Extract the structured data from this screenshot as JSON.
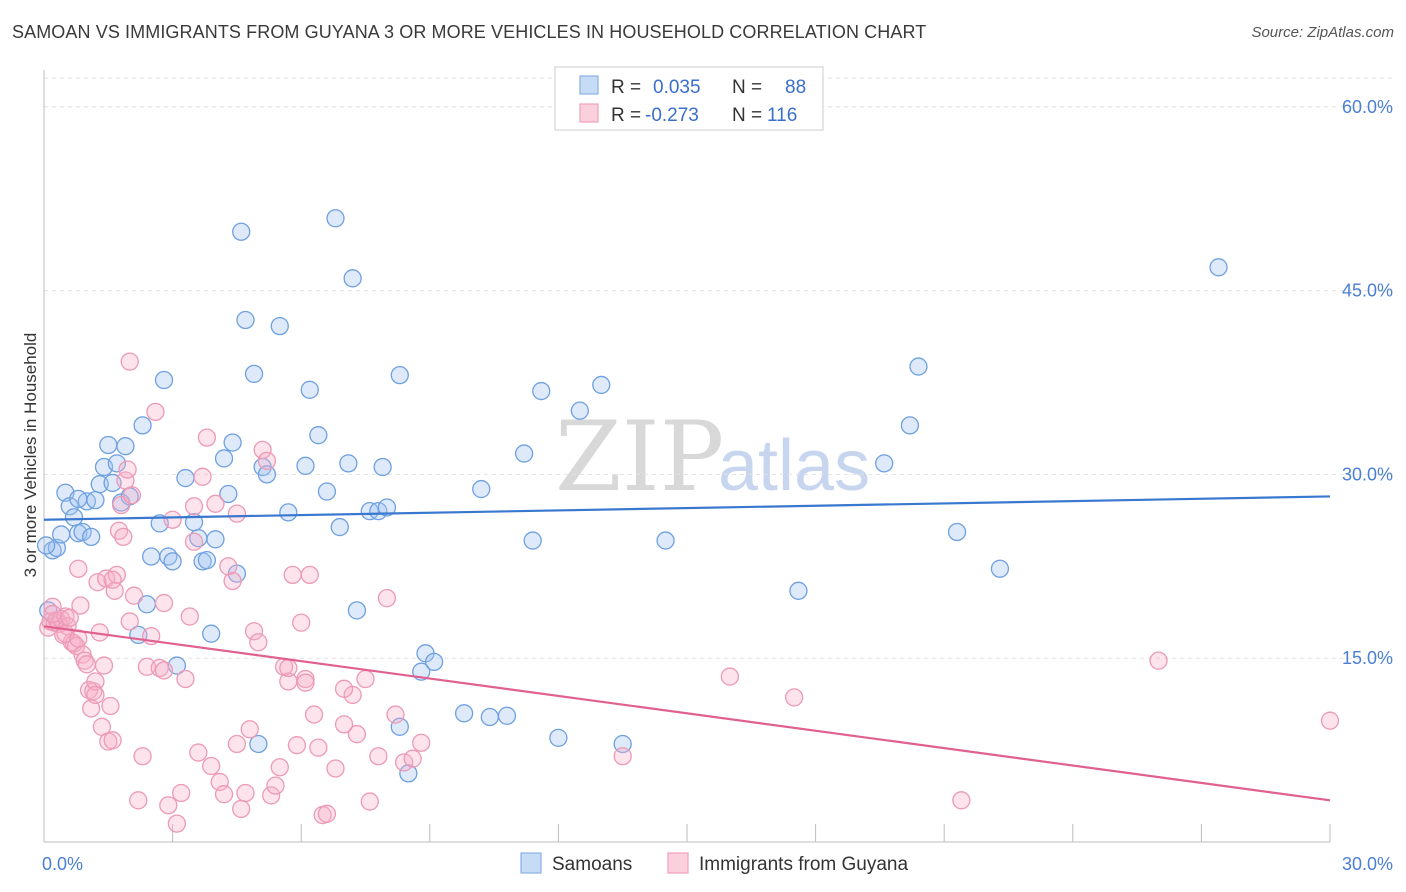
{
  "title": "SAMOAN VS IMMIGRANTS FROM GUYANA 3 OR MORE VEHICLES IN HOUSEHOLD CORRELATION CHART",
  "source": "Source: ZipAtlas.com",
  "watermark": {
    "zip": "ZIP",
    "atlas": "atlas"
  },
  "legend": {
    "r_label": "R =",
    "n_label": "N =",
    "rows": [
      {
        "r": "0.035",
        "n": "88",
        "color": "#a8c8f0"
      },
      {
        "r": "-0.273",
        "n": "116",
        "color": "#f5b8cc"
      }
    ]
  },
  "bottom_legend": [
    "Samoans",
    "Immigrants from Guyana"
  ],
  "chart_data": {
    "type": "scatter",
    "title": "SAMOAN VS IMMIGRANTS FROM GUYANA 3 OR MORE VEHICLES IN HOUSEHOLD CORRELATION CHART",
    "xlabel": "",
    "ylabel": "3 or more Vehicles in Household",
    "xlim": [
      0,
      30
    ],
    "ylim": [
      0,
      63
    ],
    "x_tick_labels": [
      "0.0%",
      "30.0%"
    ],
    "y_ticks": [
      15,
      30,
      45,
      60
    ],
    "y_tick_labels": [
      "15.0%",
      "30.0%",
      "45.0%",
      "60.0%"
    ],
    "grid": true,
    "series": [
      {
        "name": "Samoans",
        "color": "#6fa0e0",
        "trend": {
          "x": [
            0,
            30
          ],
          "y": [
            26.3,
            28.2
          ],
          "color": "#3a78d0"
        },
        "points": [
          [
            0.1,
            18.9
          ],
          [
            0.2,
            23.8
          ],
          [
            0.3,
            24.0
          ],
          [
            0.4,
            25.1
          ],
          [
            0.5,
            28.5
          ],
          [
            0.6,
            27.4
          ],
          [
            0.7,
            26.5
          ],
          [
            0.8,
            25.2
          ],
          [
            0.9,
            25.3
          ],
          [
            1.0,
            27.8
          ],
          [
            1.1,
            24.9
          ],
          [
            1.2,
            27.9
          ],
          [
            1.3,
            29.2
          ],
          [
            1.4,
            30.6
          ],
          [
            1.5,
            32.4
          ],
          [
            1.6,
            29.3
          ],
          [
            1.7,
            30.9
          ],
          [
            1.8,
            27.7
          ],
          [
            1.9,
            32.3
          ],
          [
            2.0,
            28.2
          ],
          [
            2.2,
            16.9
          ],
          [
            2.3,
            34.0
          ],
          [
            2.4,
            19.4
          ],
          [
            2.5,
            23.3
          ],
          [
            2.7,
            26.0
          ],
          [
            2.8,
            37.7
          ],
          [
            2.9,
            23.3
          ],
          [
            3.0,
            22.9
          ],
          [
            3.1,
            14.4
          ],
          [
            3.3,
            29.7
          ],
          [
            3.5,
            26.1
          ],
          [
            3.6,
            24.8
          ],
          [
            3.7,
            22.9
          ],
          [
            3.8,
            23.0
          ],
          [
            3.9,
            17.0
          ],
          [
            4.0,
            24.7
          ],
          [
            4.2,
            31.3
          ],
          [
            4.3,
            28.4
          ],
          [
            4.4,
            32.6
          ],
          [
            4.5,
            21.9
          ],
          [
            4.6,
            49.8
          ],
          [
            4.7,
            42.6
          ],
          [
            4.9,
            38.2
          ],
          [
            5.0,
            8.0
          ],
          [
            5.1,
            30.6
          ],
          [
            5.2,
            30.0
          ],
          [
            5.5,
            42.1
          ],
          [
            5.7,
            26.9
          ],
          [
            6.1,
            30.7
          ],
          [
            6.2,
            36.9
          ],
          [
            6.4,
            33.2
          ],
          [
            6.6,
            28.6
          ],
          [
            6.8,
            50.9
          ],
          [
            6.9,
            25.7
          ],
          [
            7.1,
            30.9
          ],
          [
            7.2,
            46.0
          ],
          [
            7.3,
            18.9
          ],
          [
            7.6,
            27.0
          ],
          [
            7.8,
            27.0
          ],
          [
            7.9,
            30.6
          ],
          [
            8.0,
            27.3
          ],
          [
            8.3,
            38.1
          ],
          [
            8.3,
            9.4
          ],
          [
            8.5,
            5.6
          ],
          [
            8.8,
            13.9
          ],
          [
            8.9,
            15.4
          ],
          [
            9.1,
            14.7
          ],
          [
            9.8,
            10.5
          ],
          [
            10.2,
            28.8
          ],
          [
            10.4,
            10.2
          ],
          [
            10.8,
            10.3
          ],
          [
            11.2,
            31.7
          ],
          [
            11.4,
            24.6
          ],
          [
            11.6,
            36.8
          ],
          [
            12.0,
            8.5
          ],
          [
            12.5,
            35.2
          ],
          [
            13.0,
            37.3
          ],
          [
            13.5,
            8.0
          ],
          [
            14.5,
            24.6
          ],
          [
            17.6,
            20.5
          ],
          [
            19.6,
            30.9
          ],
          [
            20.2,
            34.0
          ],
          [
            20.4,
            38.8
          ],
          [
            21.3,
            25.3
          ],
          [
            22.3,
            22.3
          ],
          [
            27.4,
            46.9
          ],
          [
            0.05,
            24.2
          ],
          [
            0.8,
            28.0
          ]
        ]
      },
      {
        "name": "Immigrants from Guyana",
        "color": "#f0a6bf",
        "trend": {
          "x": [
            0,
            30
          ],
          "y": [
            17.6,
            3.4
          ],
          "color": "#e0608f"
        },
        "points": [
          [
            0.1,
            17.5
          ],
          [
            0.15,
            18.0
          ],
          [
            0.2,
            19.2
          ],
          [
            0.25,
            17.9
          ],
          [
            0.3,
            18.1
          ],
          [
            0.35,
            17.8
          ],
          [
            0.4,
            18.2
          ],
          [
            0.45,
            16.9
          ],
          [
            0.5,
            18.4
          ],
          [
            0.55,
            17.6
          ],
          [
            0.6,
            18.3
          ],
          [
            0.65,
            16.3
          ],
          [
            0.7,
            16.2
          ],
          [
            0.75,
            16.0
          ],
          [
            0.8,
            22.3
          ],
          [
            0.85,
            19.3
          ],
          [
            0.9,
            15.3
          ],
          [
            0.95,
            14.8
          ],
          [
            1.0,
            14.5
          ],
          [
            1.05,
            12.4
          ],
          [
            1.1,
            10.9
          ],
          [
            1.15,
            12.3
          ],
          [
            1.2,
            13.1
          ],
          [
            1.25,
            21.2
          ],
          [
            1.3,
            17.1
          ],
          [
            1.35,
            9.4
          ],
          [
            1.4,
            14.4
          ],
          [
            1.45,
            21.5
          ],
          [
            1.5,
            8.2
          ],
          [
            1.55,
            11.1
          ],
          [
            1.6,
            8.3
          ],
          [
            1.65,
            20.5
          ],
          [
            1.7,
            21.8
          ],
          [
            1.75,
            25.4
          ],
          [
            1.8,
            27.5
          ],
          [
            1.85,
            24.9
          ],
          [
            1.9,
            29.5
          ],
          [
            1.95,
            30.4
          ],
          [
            2.0,
            39.2
          ],
          [
            2.05,
            28.3
          ],
          [
            2.1,
            20.1
          ],
          [
            2.2,
            3.4
          ],
          [
            2.3,
            7.0
          ],
          [
            2.4,
            14.3
          ],
          [
            2.5,
            16.8
          ],
          [
            2.6,
            35.1
          ],
          [
            2.7,
            14.2
          ],
          [
            2.8,
            19.5
          ],
          [
            2.9,
            3.0
          ],
          [
            3.0,
            26.3
          ],
          [
            3.1,
            1.5
          ],
          [
            3.2,
            4.0
          ],
          [
            3.3,
            13.3
          ],
          [
            3.4,
            18.4
          ],
          [
            3.5,
            27.4
          ],
          [
            3.6,
            7.3
          ],
          [
            3.7,
            29.8
          ],
          [
            3.8,
            33.0
          ],
          [
            3.9,
            6.2
          ],
          [
            4.0,
            27.6
          ],
          [
            4.1,
            4.9
          ],
          [
            4.2,
            3.9
          ],
          [
            4.3,
            22.5
          ],
          [
            4.4,
            21.3
          ],
          [
            4.5,
            26.8
          ],
          [
            4.6,
            2.7
          ],
          [
            4.7,
            4.0
          ],
          [
            4.8,
            9.2
          ],
          [
            4.9,
            17.2
          ],
          [
            5.0,
            16.3
          ],
          [
            5.1,
            32.0
          ],
          [
            5.2,
            31.1
          ],
          [
            5.3,
            3.8
          ],
          [
            5.4,
            4.6
          ],
          [
            5.5,
            6.1
          ],
          [
            5.6,
            14.3
          ],
          [
            5.7,
            13.1
          ],
          [
            5.8,
            21.8
          ],
          [
            5.9,
            7.9
          ],
          [
            6.0,
            17.9
          ],
          [
            6.1,
            13.3
          ],
          [
            6.2,
            21.8
          ],
          [
            6.3,
            10.4
          ],
          [
            6.4,
            7.7
          ],
          [
            6.5,
            2.2
          ],
          [
            6.6,
            2.3
          ],
          [
            6.8,
            6.0
          ],
          [
            7.0,
            9.6
          ],
          [
            7.2,
            12.0
          ],
          [
            7.3,
            8.8
          ],
          [
            7.5,
            13.3
          ],
          [
            7.6,
            3.3
          ],
          [
            7.8,
            7.0
          ],
          [
            8.0,
            19.9
          ],
          [
            8.2,
            10.4
          ],
          [
            8.4,
            6.5
          ],
          [
            8.6,
            6.8
          ],
          [
            8.8,
            8.1
          ],
          [
            13.5,
            7.0
          ],
          [
            16.0,
            13.5
          ],
          [
            17.5,
            11.8
          ],
          [
            21.4,
            3.4
          ],
          [
            26.0,
            14.8
          ],
          [
            30.0,
            9.9
          ],
          [
            0.2,
            18.6
          ],
          [
            0.5,
            17.0
          ],
          [
            0.8,
            16.6
          ],
          [
            1.2,
            12.0
          ],
          [
            1.6,
            21.4
          ],
          [
            2.0,
            18.0
          ],
          [
            2.8,
            14.0
          ],
          [
            3.5,
            24.5
          ],
          [
            4.5,
            8.0
          ],
          [
            5.7,
            14.2
          ],
          [
            6.1,
            13.0
          ],
          [
            7.0,
            12.5
          ]
        ]
      }
    ]
  }
}
